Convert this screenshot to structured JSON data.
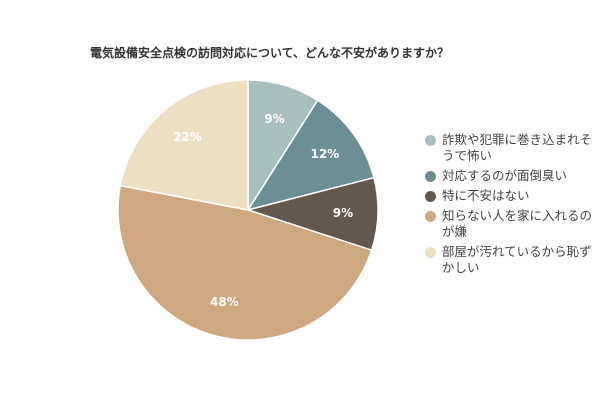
{
  "chart_data": {
    "type": "pie",
    "title": "電気設備安全点検の訪問対応について、どんな不安がありますか？",
    "start_angle_deg": 0,
    "direction": "clockwise",
    "legend_position": "right",
    "slices": [
      {
        "label": "詐欺や犯罪に巻き込まれそうで怖い",
        "value": 9,
        "display": "9%",
        "color": "#a8bfc0"
      },
      {
        "label": "対応するのが面倒臭い",
        "value": 12,
        "display": "12%",
        "color": "#6b8f95"
      },
      {
        "label": "特に不安はない",
        "value": 9,
        "display": "9%",
        "color": "#64574d"
      },
      {
        "label": "知らない人を家に入れるのが嫌",
        "value": 48,
        "display": "48%",
        "color": "#cfa882"
      },
      {
        "label": "部屋が汚れているから恥ずかしい",
        "value": 22,
        "display": "22%",
        "color": "#ecdfc4"
      }
    ]
  }
}
